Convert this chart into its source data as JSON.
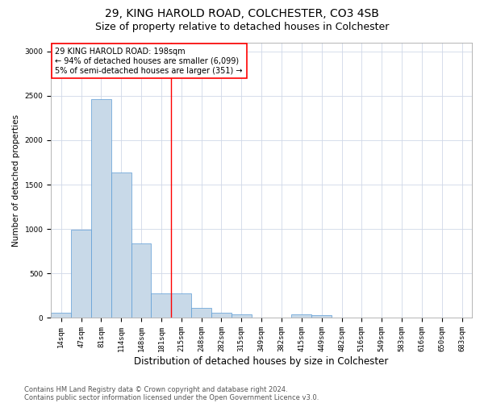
{
  "title1": "29, KING HAROLD ROAD, COLCHESTER, CO3 4SB",
  "title2": "Size of property relative to detached houses in Colchester",
  "xlabel": "Distribution of detached houses by size in Colchester",
  "ylabel": "Number of detached properties",
  "categories": [
    "14sqm",
    "47sqm",
    "81sqm",
    "114sqm",
    "148sqm",
    "181sqm",
    "215sqm",
    "248sqm",
    "282sqm",
    "315sqm",
    "349sqm",
    "382sqm",
    "415sqm",
    "449sqm",
    "482sqm",
    "516sqm",
    "549sqm",
    "583sqm",
    "616sqm",
    "650sqm",
    "683sqm"
  ],
  "values": [
    60,
    990,
    2460,
    1640,
    840,
    280,
    280,
    115,
    55,
    40,
    0,
    0,
    40,
    30,
    0,
    0,
    0,
    0,
    0,
    0,
    0
  ],
  "bar_color": "#c8d9e8",
  "bar_edge_color": "#5b9bd5",
  "property_line_x": 5.5,
  "annotation_text": "29 KING HAROLD ROAD: 198sqm\n← 94% of detached houses are smaller (6,099)\n5% of semi-detached houses are larger (351) →",
  "annotation_box_color": "white",
  "annotation_box_edge_color": "red",
  "vline_color": "red",
  "ylim": [
    0,
    3100
  ],
  "yticks": [
    0,
    500,
    1000,
    1500,
    2000,
    2500,
    3000
  ],
  "grid_color": "#d0d8e8",
  "footer1": "Contains HM Land Registry data © Crown copyright and database right 2024.",
  "footer2": "Contains public sector information licensed under the Open Government Licence v3.0.",
  "title1_fontsize": 10,
  "title2_fontsize": 9,
  "xlabel_fontsize": 8.5,
  "ylabel_fontsize": 7.5,
  "tick_fontsize": 6.5,
  "annot_fontsize": 7,
  "footer_fontsize": 6
}
